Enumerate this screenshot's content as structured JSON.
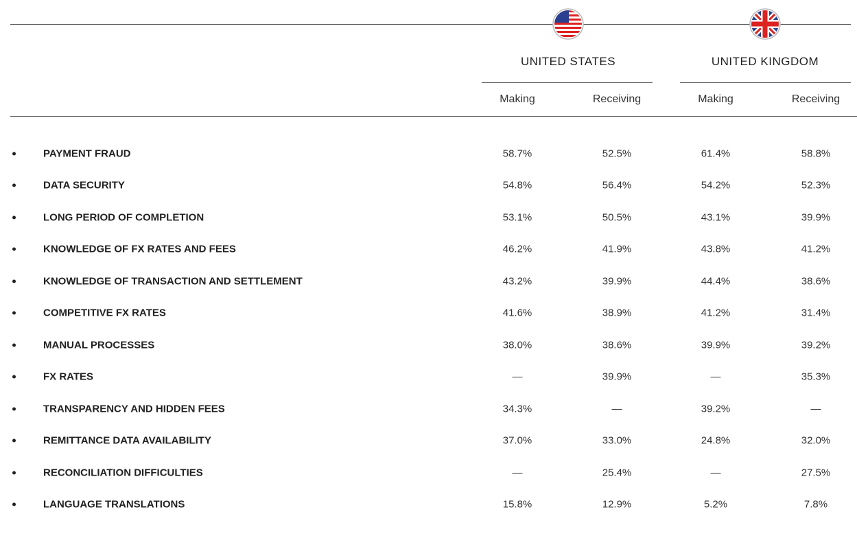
{
  "table": {
    "groups": [
      {
        "title": "UNITED STATES",
        "columns": [
          "Making",
          "Receiving"
        ]
      },
      {
        "title": "UNITED KINGDOM",
        "columns": [
          "Making",
          "Receiving"
        ]
      }
    ],
    "rows": [
      [
        "PAYMENT FRAUD",
        "58.7%",
        "52.5%",
        "61.4%",
        "58.8%"
      ],
      [
        "DATA SECURITY",
        "54.8%",
        "56.4%",
        "54.2%",
        "52.3%"
      ],
      [
        "LONG PERIOD OF COMPLETION",
        "53.1%",
        "50.5%",
        "43.1%",
        "39.9%"
      ],
      [
        "KNOWLEDGE OF FX RATES AND FEES",
        "46.2%",
        "41.9%",
        "43.8%",
        "41.2%"
      ],
      [
        "KNOWLEDGE OF TRANSACTION AND SETTLEMENT",
        "43.2%",
        "39.9%",
        "44.4%",
        "38.6%"
      ],
      [
        "COMPETITIVE FX RATES",
        "41.6%",
        "38.9%",
        "41.2%",
        "31.4%"
      ],
      [
        "MANUAL PROCESSES",
        "38.0%",
        "38.6%",
        "39.9%",
        "39.2%"
      ],
      [
        "FX RATES",
        "—",
        "39.9%",
        "—",
        "35.3%"
      ],
      [
        "TRANSPARENCY AND HIDDEN FEES",
        "34.3%",
        "—",
        "39.2%",
        "—"
      ],
      [
        "REMITTANCE DATA AVAILABILITY",
        "37.0%",
        "33.0%",
        "24.8%",
        "32.0%"
      ],
      [
        "RECONCILIATION DIFFICULTIES",
        "—",
        "25.4%",
        "—",
        "27.5%"
      ],
      [
        "LANGUAGE TRANSLATIONS",
        "15.8%",
        "12.9%",
        "5.2%",
        "7.8%"
      ]
    ]
  }
}
